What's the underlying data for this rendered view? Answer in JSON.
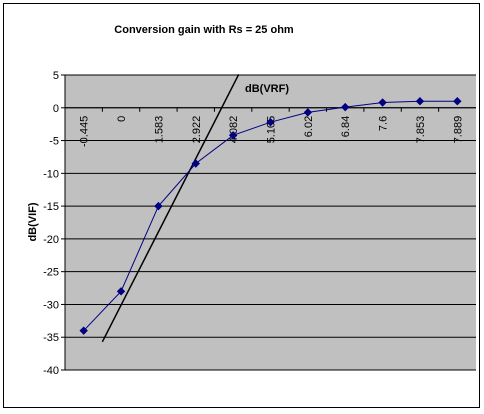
{
  "chart_data": {
    "type": "line",
    "title": "Conversion gain with Rs = 25 ohm",
    "xlabel": "",
    "ylabel": "dB(VIF)",
    "annotation": "dB(VRF)",
    "categories": [
      "-0.445",
      "0",
      "1.583",
      "2.922",
      "4.082",
      "5.105",
      "6.02",
      "6.84",
      "7.6",
      "7.853",
      "7.889"
    ],
    "series": [
      {
        "name": "",
        "color": "#000080",
        "marker": "diamond",
        "values": [
          -34,
          -28,
          -15,
          -8.5,
          -4.2,
          -2.2,
          -0.7,
          0.1,
          0.8,
          1.0,
          1.0
        ]
      }
    ],
    "reference_line": {
      "color": "#000000",
      "from": [
        -35.7,
        0.5
      ],
      "to": [
        5.1,
        4.15
      ],
      "comment_units": "y in data units, x in category index units"
    },
    "ylim": [
      -40,
      5
    ],
    "yticks": [
      5,
      0,
      -5,
      -10,
      -15,
      -20,
      -25,
      -30,
      -35,
      -40
    ],
    "grid": true,
    "plot_background": "#c0c0c0",
    "gridline_color": "#000000"
  }
}
